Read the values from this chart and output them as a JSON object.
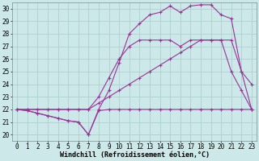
{
  "bg_color": "#cce8e8",
  "grid_color": "#aacccc",
  "line_color": "#993399",
  "marker": "+",
  "markersize": 3.5,
  "markeredgewidth": 0.8,
  "linewidth": 0.8,
  "xlabel": "Windchill (Refroidissement éolien,°C)",
  "xlabel_fontsize": 6.0,
  "tick_fontsize": 5.5,
  "xlim": [
    -0.5,
    23.5
  ],
  "ylim": [
    19.5,
    30.5
  ],
  "yticks": [
    20,
    21,
    22,
    23,
    24,
    25,
    26,
    27,
    28,
    29,
    30
  ],
  "xticks": [
    0,
    1,
    2,
    3,
    4,
    5,
    6,
    7,
    8,
    9,
    10,
    11,
    12,
    13,
    14,
    15,
    16,
    17,
    18,
    19,
    20,
    21,
    22,
    23
  ],
  "series": [
    [
      22.0,
      21.9,
      21.7,
      21.5,
      21.3,
      21.1,
      21.0,
      20.0,
      21.9,
      22.0,
      22.0,
      22.0,
      22.0,
      22.0,
      22.0,
      22.0,
      22.0,
      22.0,
      22.0,
      22.0,
      22.0,
      22.0,
      22.0,
      22.0
    ],
    [
      22.0,
      22.0,
      22.0,
      22.0,
      22.0,
      22.0,
      22.0,
      22.0,
      22.5,
      23.0,
      23.5,
      24.0,
      24.5,
      25.0,
      25.5,
      26.0,
      26.5,
      27.0,
      27.5,
      27.5,
      27.5,
      25.0,
      23.5,
      22.0
    ],
    [
      22.0,
      22.0,
      22.0,
      22.0,
      22.0,
      22.0,
      22.0,
      22.0,
      23.0,
      24.5,
      26.0,
      27.0,
      27.5,
      27.5,
      27.5,
      27.5,
      27.0,
      27.5,
      27.5,
      27.5,
      27.5,
      27.5,
      25.0,
      24.0
    ],
    [
      22.0,
      21.9,
      21.7,
      21.5,
      21.3,
      21.1,
      21.0,
      20.0,
      22.0,
      23.5,
      25.7,
      28.0,
      28.8,
      29.5,
      29.7,
      30.2,
      29.7,
      30.2,
      30.3,
      30.3,
      29.5,
      29.2,
      25.0,
      22.0
    ]
  ]
}
